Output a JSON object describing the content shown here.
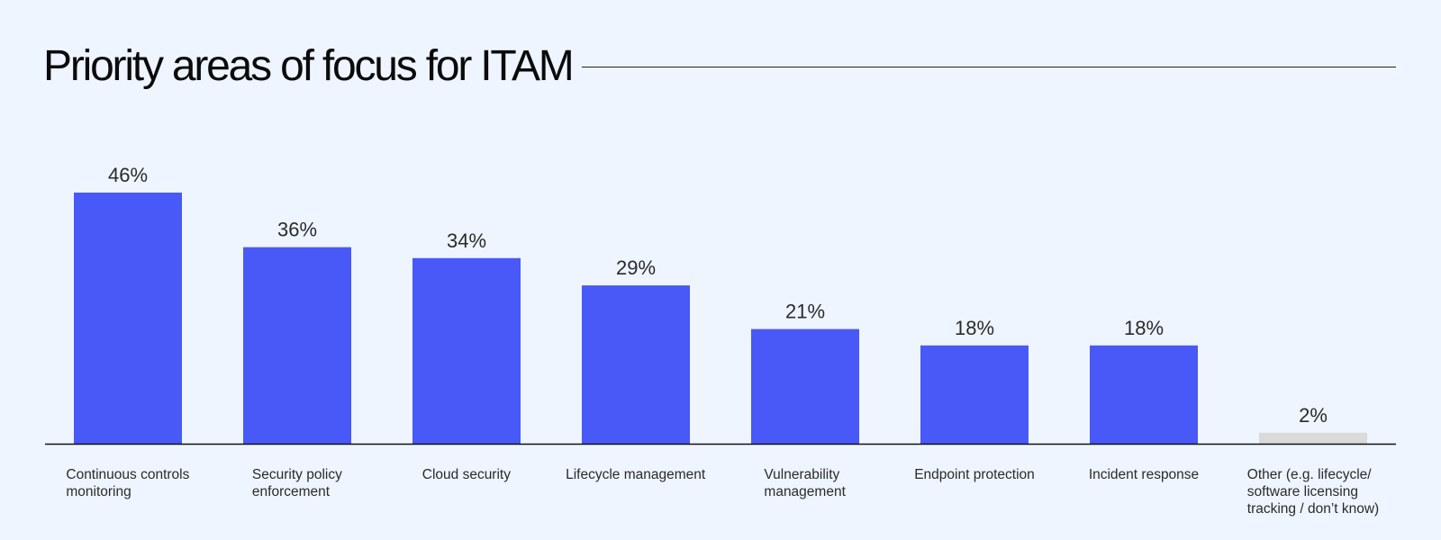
{
  "title": "Priority areas of focus for ITAM",
  "colors": {
    "bar": "#4859F7",
    "bar_other": "#DADADA",
    "axis": "#111111",
    "background": "#EEF5FF"
  },
  "chart_data": {
    "type": "bar",
    "title": "Priority areas of focus for ITAM",
    "xlabel": "",
    "ylabel": "",
    "ylim": [
      0,
      46
    ],
    "grid": false,
    "unit": "%",
    "categories": [
      [
        "Continuous controls",
        "monitoring"
      ],
      [
        "Security policy",
        "enforcement"
      ],
      [
        "Cloud security"
      ],
      [
        "Lifecycle management"
      ],
      [
        "Vulnerability",
        "management"
      ],
      [
        "Endpoint protection"
      ],
      [
        "Incident response"
      ],
      [
        "Other (e.g. lifecycle/",
        "software licensing",
        "tracking / don’t know)"
      ]
    ],
    "values": [
      46,
      36,
      34,
      29,
      21,
      18,
      18,
      2
    ],
    "labels": [
      "46%",
      "36%",
      "34%",
      "29%",
      "21%",
      "18%",
      "18%",
      "2%"
    ],
    "highlight": [
      true,
      true,
      true,
      true,
      true,
      true,
      true,
      false
    ]
  }
}
